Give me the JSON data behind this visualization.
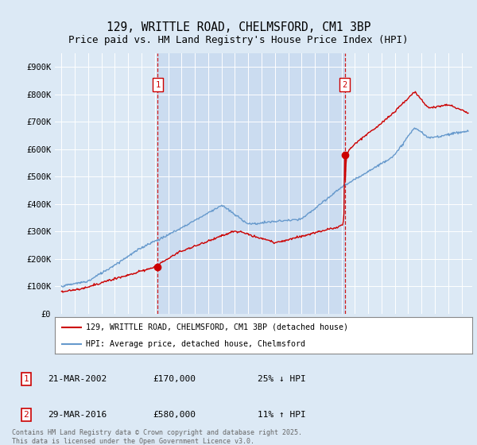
{
  "title": "129, WRITTLE ROAD, CHELMSFORD, CM1 3BP",
  "subtitle": "Price paid vs. HM Land Registry's House Price Index (HPI)",
  "title_fontsize": 10.5,
  "subtitle_fontsize": 9,
  "bg_color": "#dce9f5",
  "plot_bg_color": "#dce9f5",
  "shade_color": "#c8daf0",
  "ylim": [
    0,
    950000
  ],
  "yticks": [
    0,
    100000,
    200000,
    300000,
    400000,
    500000,
    600000,
    700000,
    800000,
    900000
  ],
  "ytick_labels": [
    "£0",
    "£100K",
    "£200K",
    "£300K",
    "£400K",
    "£500K",
    "£600K",
    "£700K",
    "£800K",
    "£900K"
  ],
  "xmin": 1994.5,
  "xmax": 2025.8,
  "vline1_year": 2002.22,
  "vline2_year": 2016.24,
  "vline_color": "#cc0000",
  "sale1_year": 2002.22,
  "sale1_value": 170000,
  "sale2_year": 2016.24,
  "sale2_value": 580000,
  "legend_line1": "129, WRITTLE ROAD, CHELMSFORD, CM1 3BP (detached house)",
  "legend_line2": "HPI: Average price, detached house, Chelmsford",
  "legend_line1_color": "#cc0000",
  "legend_line2_color": "#6699cc",
  "note1_label": "1",
  "note1_date": "21-MAR-2002",
  "note1_price": "£170,000",
  "note1_hpi": "25% ↓ HPI",
  "note2_label": "2",
  "note2_date": "29-MAR-2016",
  "note2_price": "£580,000",
  "note2_hpi": "11% ↑ HPI",
  "copyright": "Contains HM Land Registry data © Crown copyright and database right 2025.\nThis data is licensed under the Open Government Licence v3.0."
}
